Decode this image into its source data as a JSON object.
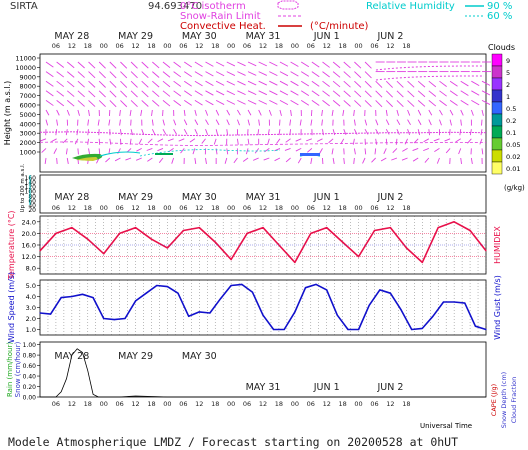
{
  "header": {
    "station": "SIRTA",
    "coords": "94.693470",
    "isotherm": "0°C isotherm",
    "snow_rain": "Snow-Rain Limit",
    "convective": "Convective Heat.",
    "conv_unit": "(°C/minute)",
    "rh": "Relative Humidity",
    "rh_90": "90 %",
    "rh_60": "60 %"
  },
  "days": [
    "MAY 28",
    "MAY 29",
    "MAY 30",
    "MAY 31",
    "JUN 1",
    "JUN 2"
  ],
  "hours": [
    "06",
    "12",
    "18",
    "00",
    "06",
    "12",
    "18",
    "00",
    "06",
    "12",
    "18",
    "00",
    "06",
    "12",
    "18",
    "00",
    "06",
    "12",
    "18",
    "00",
    "06",
    "12",
    "18"
  ],
  "clouds": {
    "title": "Clouds",
    "unit": "(g/kg)",
    "levels": [
      "9",
      "5",
      "2",
      "1",
      "0.5",
      "0.2",
      "0.1",
      "0.05",
      "0.02",
      "0.01"
    ],
    "colors": [
      "#ff00ff",
      "#cc33cc",
      "#9933ff",
      "#3333cc",
      "#3366ff",
      "#009999",
      "#00aa55",
      "#66cc33",
      "#ccdd00",
      "#ffff66"
    ]
  },
  "footer": {
    "title": "Modele Atmospherique LMDZ / Forecast starting on 20200528 at 0hUT",
    "universal_time": "Universal Time"
  },
  "chart_data": [
    {
      "type": "line",
      "panel": "height",
      "ylabel": "Height (m a.s.l.)",
      "yticks_upper": [
        11000,
        10000,
        9000,
        8000,
        7000,
        6000,
        5000,
        4000,
        3000,
        2000,
        1000
      ],
      "yticks_lower": [
        160,
        140,
        120,
        100,
        80,
        60,
        40,
        20
      ],
      "lower_label": "Up to 200 m a.s.l.",
      "series": [
        {
          "name": "0°C isotherm",
          "x": [
            0,
            12,
            24,
            36,
            48,
            60,
            72,
            84,
            96,
            108,
            120,
            132,
            144,
            156,
            168
          ],
          "y": [
            3100,
            3150,
            3050,
            2900,
            2800,
            2750,
            2800,
            2850,
            2900,
            2950,
            3000,
            3050,
            3050,
            3100,
            3050
          ]
        }
      ]
    },
    {
      "type": "line",
      "panel": "temperature",
      "ylabel": "Temperature (°C)",
      "ylabel_right": "HUMIDEX",
      "yticks": [
        24,
        20,
        16,
        12,
        8
      ],
      "ylim": [
        6,
        26
      ],
      "series": [
        {
          "name": "Temperature",
          "x": [
            0,
            6,
            12,
            18,
            24,
            30,
            36,
            42,
            48,
            54,
            60,
            66,
            72,
            78,
            84,
            90,
            96,
            102,
            108,
            114,
            120,
            126,
            132,
            138,
            144,
            150,
            156,
            162,
            168
          ],
          "y": [
            14,
            20,
            22,
            18,
            13,
            20,
            22,
            18,
            15,
            21,
            22,
            17,
            11,
            20,
            22,
            16,
            10,
            20,
            22,
            17,
            12,
            21,
            22,
            15,
            10,
            22,
            24,
            21,
            14
          ]
        }
      ]
    },
    {
      "type": "line",
      "panel": "wind",
      "ylabel": "Wind Speed (m/s)",
      "ylabel_right": "Wind Gust (m/s)",
      "yticks": [
        5.0,
        4.0,
        3.0,
        2.0,
        1.0
      ],
      "ylim": [
        0.5,
        5.5
      ],
      "series": [
        {
          "name": "Wind Speed",
          "x": [
            0,
            4,
            8,
            12,
            16,
            20,
            24,
            28,
            32,
            36,
            40,
            44,
            48,
            52,
            56,
            60,
            64,
            68,
            72,
            76,
            80,
            84,
            88,
            92,
            96,
            100,
            104,
            108,
            112,
            116,
            120,
            124,
            128,
            132,
            136,
            140,
            144,
            148,
            152,
            156,
            160,
            164,
            168
          ],
          "y": [
            2.5,
            2.4,
            3.9,
            4.0,
            4.2,
            3.9,
            2.0,
            1.9,
            2.0,
            3.6,
            4.3,
            5.0,
            4.9,
            4.3,
            2.2,
            2.6,
            2.5,
            3.8,
            5.0,
            5.1,
            4.4,
            2.3,
            1.0,
            1.0,
            2.6,
            4.8,
            5.1,
            4.6,
            2.3,
            1.0,
            1.0,
            3.2,
            4.6,
            4.3,
            2.8,
            1.0,
            1.1,
            2.2,
            3.5,
            3.5,
            3.4,
            1.3,
            1.0
          ]
        }
      ]
    },
    {
      "type": "area",
      "panel": "rain",
      "ylabel": "Rain (mm/hour)",
      "ylabel2": "Snow (cm/hour)",
      "ylabel_right": "Snow Depth (cm)",
      "ylabel_right2": "Cloud Fraction",
      "ylabel_right3": "CAPE (J/g)",
      "yticks": [
        1.0,
        0.8,
        0.6,
        0.4,
        0.2,
        0.0
      ],
      "ylim": [
        0,
        1.05
      ],
      "series": [
        {
          "name": "Rain",
          "x": [
            0,
            6,
            8,
            10,
            12,
            14,
            16,
            18,
            20,
            22,
            24,
            30,
            36,
            48,
            60,
            72,
            84,
            96,
            108,
            120,
            132,
            144,
            156,
            168
          ],
          "y": [
            0,
            0,
            0.1,
            0.35,
            0.8,
            0.92,
            0.85,
            0.5,
            0.05,
            0.0,
            0,
            0,
            0.02,
            0,
            0,
            0,
            0,
            0,
            0,
            0,
            0,
            0,
            0,
            0
          ]
        }
      ]
    }
  ]
}
